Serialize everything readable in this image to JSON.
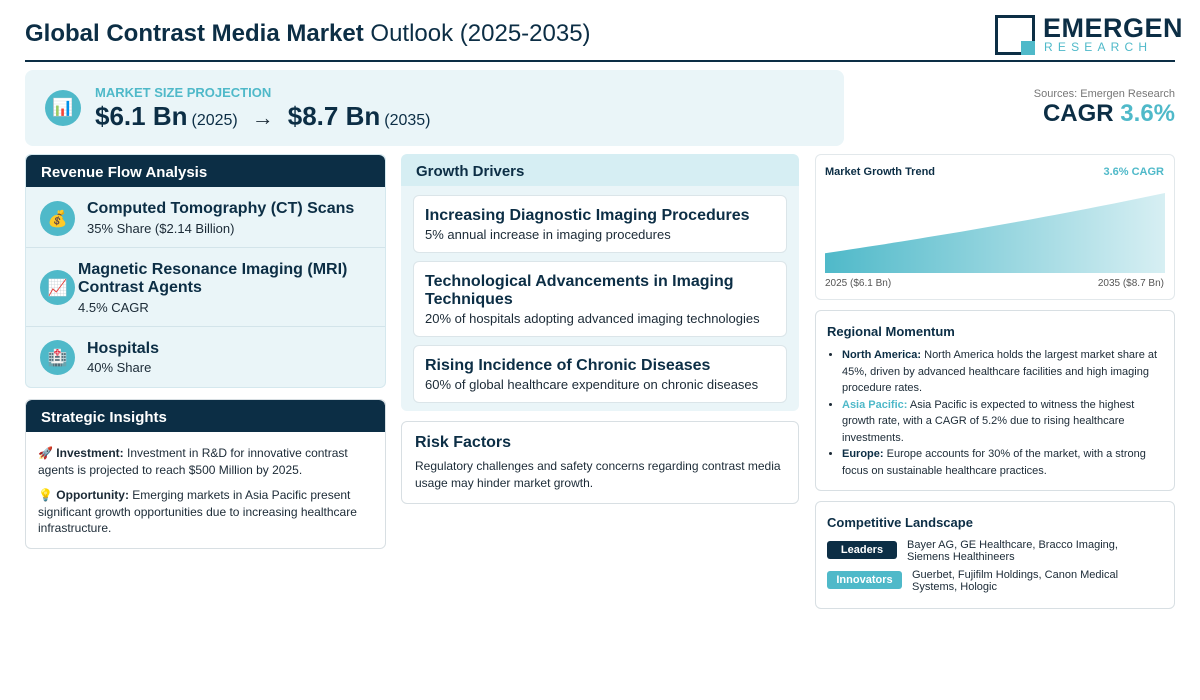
{
  "header": {
    "title_bold": "Global Contrast Media Market",
    "title_rest": "Outlook (2025-2035)",
    "logo_main": "EMERGEN",
    "logo_sub": "RESEARCH"
  },
  "projection": {
    "icon": "bar-chart-icon",
    "label": "MARKET SIZE PROJECTION",
    "start_value": "$6.1 Bn",
    "start_year": "(2025)",
    "arrow": "→",
    "end_value": "$8.7 Bn",
    "end_year": "(2035)"
  },
  "sources": "Sources: Emergen Research",
  "cagr": {
    "label": "CAGR",
    "value": "3.6%"
  },
  "revenue": {
    "title": "Revenue Flow Analysis",
    "items": [
      {
        "icon": "money-bag-icon",
        "title": "Computed Tomography (CT) Scans",
        "sub": "35% Share ($2.14 Billion)"
      },
      {
        "icon": "chart-up-icon",
        "title": "Magnetic Resonance Imaging (MRI) Contrast Agents",
        "sub": "4.5% CAGR"
      },
      {
        "icon": "hospital-icon",
        "title": "Hospitals",
        "sub": "40% Share"
      }
    ]
  },
  "insights": {
    "title": "Strategic Insights",
    "items": [
      {
        "icon": "rocket-icon",
        "label": "Investment:",
        "text": "Investment in R&D for innovative contrast agents is projected to reach $500 Million by 2025."
      },
      {
        "icon": "lightbulb-icon",
        "label": "Opportunity:",
        "text": "Emerging markets in Asia Pacific present significant growth opportunities due to increasing healthcare infrastructure."
      }
    ]
  },
  "drivers": {
    "title": "Growth Drivers",
    "items": [
      {
        "title": "Increasing Diagnostic Imaging Procedures",
        "sub": "5% annual increase in imaging procedures"
      },
      {
        "title": "Technological Advancements in Imaging Techniques",
        "sub": "20% of hospitals adopting advanced imaging technologies"
      },
      {
        "title": "Rising Incidence of Chronic Diseases",
        "sub": "60% of global healthcare expenditure on chronic diseases"
      }
    ]
  },
  "risk": {
    "title": "Risk Factors",
    "text": "Regulatory challenges and safety concerns regarding contrast media usage may hinder market growth."
  },
  "trend": {
    "title": "Market Growth Trend",
    "cagr_label": "3.6% CAGR",
    "left_label": "2025 ($6.1 Bn)",
    "right_label": "2035 ($8.7 Bn)"
  },
  "chart_data": {
    "type": "area",
    "title": "Market Growth Trend",
    "x": [
      2025,
      2035
    ],
    "values": [
      6.1,
      8.7
    ],
    "x_labels": [
      "2025 ($6.1 Bn)",
      "2035 ($8.7 Bn)"
    ],
    "annotation": "3.6% CAGR",
    "grid": false,
    "color": "#4fb9c9"
  },
  "regional": {
    "title": "Regional Momentum",
    "items": [
      {
        "label": "North America:",
        "text": "North America holds the largest market share at 45%, driven by advanced healthcare facilities and high imaging procedure rates.",
        "accent": false
      },
      {
        "label": "Asia Pacific:",
        "text": "Asia Pacific is expected to witness the highest growth rate, with a CAGR of 5.2% due to rising healthcare investments.",
        "accent": true
      },
      {
        "label": "Europe:",
        "text": "Europe accounts for 30% of the market, with a strong focus on sustainable healthcare practices.",
        "accent": false
      }
    ]
  },
  "competitive": {
    "title": "Competitive Landscape",
    "leaders_label": "Leaders",
    "leaders": "Bayer AG, GE Healthcare, Bracco Imaging, Siemens Healthineers",
    "innovators_label": "Innovators",
    "innovators": "Guerbet, Fujifilm Holdings, Canon Medical Systems, Hologic"
  },
  "colors": {
    "navy": "#0c2e45",
    "accent": "#4fb9c9",
    "panel": "#eaf5f8"
  }
}
